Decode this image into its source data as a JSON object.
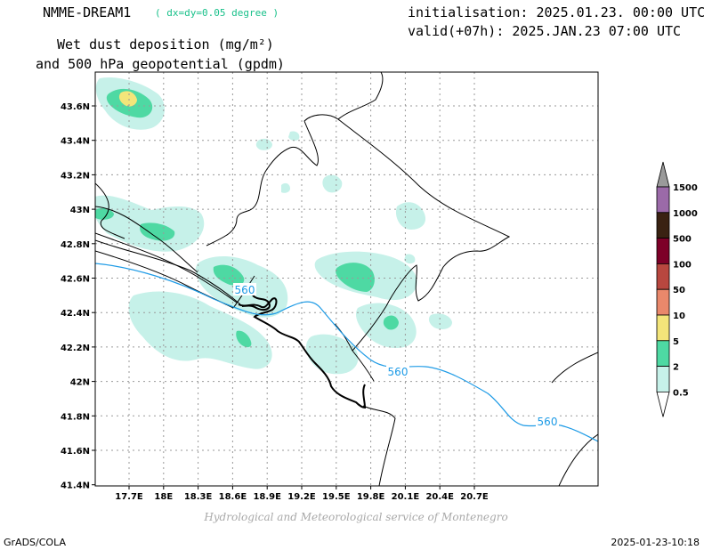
{
  "header": {
    "model": "NMME-DREAM1",
    "resolution": "( dx=dy=0.05 degree )",
    "init": "initialisation: 2025.01.23. 00:00 UTC",
    "valid": "valid(+07h): 2025.JAN.23 07:00 UTC",
    "title_line1": "Wet dust deposition (mg/m²)",
    "title_line2": "and 500 hPa geopotential (gpdm)"
  },
  "map": {
    "lon_ticks": [
      "17.7E",
      "18E",
      "18.3E",
      "18.6E",
      "18.9E",
      "19.2E",
      "19.5E",
      "19.8E",
      "20.1E",
      "20.4E",
      "20.7E"
    ],
    "lat_ticks": [
      "43.6N",
      "43.4N",
      "43.2N",
      "43N",
      "42.8N",
      "42.6N",
      "42.4N",
      "42.2N",
      "42N",
      "41.8N",
      "41.6N",
      "41.4N"
    ],
    "contour_labels": [
      "560",
      "560",
      "560"
    ],
    "contour_color": "#1e9be6"
  },
  "legend": {
    "levels": [
      "1500",
      "1000",
      "500",
      "100",
      "50",
      "10",
      "5",
      "2",
      "0.5"
    ],
    "colors": [
      "#9b6aa8",
      "#3a2212",
      "#7d0028",
      "#b8473f",
      "#e9886b",
      "#f3e57a",
      "#4ed9a3",
      "#c6f1e9"
    ],
    "top_color": "#9a9a9a"
  },
  "footer": {
    "credit": "Hydrological and Meteorological service of Montenegro",
    "left": "GrADS/COLA",
    "right": "2025-01-23-10:18"
  }
}
